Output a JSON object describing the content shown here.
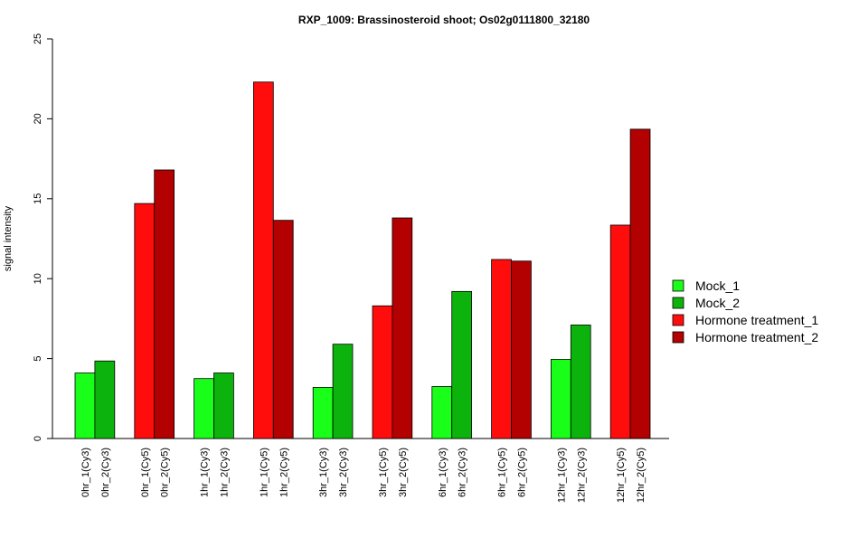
{
  "chart_data": {
    "type": "bar",
    "title": "RXP_1009: Brassinosteroid shoot; Os02g0111800_32180",
    "ylabel": "signal intensity",
    "xlabel": "",
    "ylim": [
      0,
      25
    ],
    "yticks": [
      0,
      5,
      10,
      15,
      20,
      25
    ],
    "legend_position": "right",
    "grid": false,
    "legend": [
      {
        "name": "Mock_1",
        "color": "#1aff1a"
      },
      {
        "name": "Mock_2",
        "color": "#0cb30c"
      },
      {
        "name": "Hormone treatment_1",
        "color": "#ff0d0d"
      },
      {
        "name": "Hormone treatment_2",
        "color": "#b30000"
      }
    ],
    "bars": [
      {
        "label": "0hr_1(Cy3)",
        "value": 4.1,
        "color": "#1aff1a"
      },
      {
        "label": "0hr_2(Cy3)",
        "value": 4.85,
        "color": "#0cb30c"
      },
      {
        "label": "0hr_1(Cy5)",
        "value": 14.7,
        "color": "#ff0d0d"
      },
      {
        "label": "0hr_2(Cy5)",
        "value": 16.8,
        "color": "#b30000"
      },
      {
        "label": "1hr_1(Cy3)",
        "value": 3.75,
        "color": "#1aff1a"
      },
      {
        "label": "1hr_2(Cy3)",
        "value": 4.1,
        "color": "#0cb30c"
      },
      {
        "label": "1hr_1(Cy5)",
        "value": 22.3,
        "color": "#ff0d0d"
      },
      {
        "label": "1hr_2(Cy5)",
        "value": 13.65,
        "color": "#b30000"
      },
      {
        "label": "3hr_1(Cy3)",
        "value": 3.2,
        "color": "#1aff1a"
      },
      {
        "label": "3hr_2(Cy3)",
        "value": 5.9,
        "color": "#0cb30c"
      },
      {
        "label": "3hr_1(Cy5)",
        "value": 8.3,
        "color": "#ff0d0d"
      },
      {
        "label": "3hr_2(Cy5)",
        "value": 13.8,
        "color": "#b30000"
      },
      {
        "label": "6hr_1(Cy3)",
        "value": 3.25,
        "color": "#1aff1a"
      },
      {
        "label": "6hr_2(Cy3)",
        "value": 9.2,
        "color": "#0cb30c"
      },
      {
        "label": "6hr_1(Cy5)",
        "value": 11.2,
        "color": "#ff0d0d"
      },
      {
        "label": "6hr_2(Cy5)",
        "value": 11.1,
        "color": "#b30000"
      },
      {
        "label": "12hr_1(Cy3)",
        "value": 4.95,
        "color": "#1aff1a"
      },
      {
        "label": "12hr_2(Cy3)",
        "value": 7.1,
        "color": "#0cb30c"
      },
      {
        "label": "12hr_1(Cy5)",
        "value": 13.35,
        "color": "#ff0d0d"
      },
      {
        "label": "12hr_2(Cy5)",
        "value": 19.35,
        "color": "#b30000"
      }
    ]
  }
}
